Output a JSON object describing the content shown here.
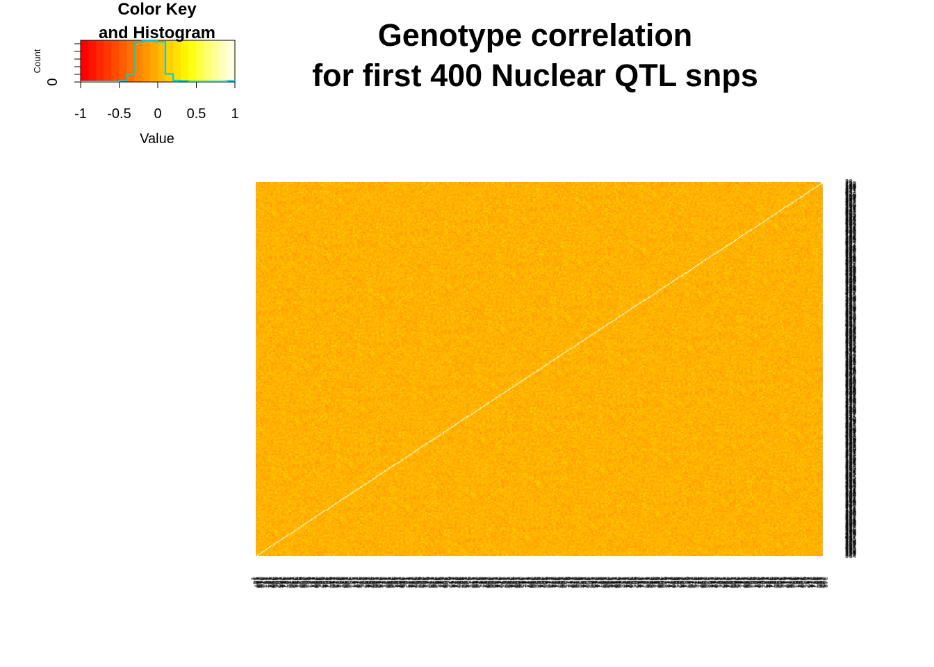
{
  "chart_data": {
    "type": "heatmap",
    "title": "Genotype correlation\nfor first 400 Nuclear QTL snps",
    "title_lines": [
      "Genotype correlation",
      "for first 400 Nuclear QTL snps"
    ],
    "n_snps": 400,
    "diagonal_value": 1,
    "off_diagonal_typical_range": [
      -0.3,
      0.3
    ],
    "color_scale": [
      "#FF0000",
      "#FF3300",
      "#FF6600",
      "#FF9900",
      "#FFCC00",
      "#FFFF00",
      "#FFFF80",
      "#FFFFE0"
    ],
    "color_key": {
      "title": "Color Key\nand Histogram",
      "title_lines": [
        "Color Key",
        "and Histogram"
      ],
      "xlabel": "Value",
      "ylabel": "Count",
      "xlim": [
        -1,
        1
      ],
      "x_ticks": [
        "-1",
        "-0.5",
        "0",
        "0.5",
        "1"
      ],
      "y_tick_label": "0",
      "histogram_color": "#00CED1",
      "histogram_bins": [
        -1,
        -0.9,
        -0.8,
        -0.7,
        -0.6,
        -0.5,
        -0.4,
        -0.3,
        -0.2,
        -0.1,
        0,
        0.1,
        0.2,
        0.3,
        0.4,
        0.5,
        0.6,
        0.7,
        0.8,
        0.9,
        1
      ],
      "histogram_counts_relative": [
        0,
        0,
        0,
        0,
        0,
        0.01,
        0.18,
        0.98,
        1.0,
        1.0,
        0.98,
        0.18,
        0.02,
        0.01,
        0,
        0,
        0,
        0,
        0,
        0.01
      ]
    },
    "axis_labels_note": "400 SNP index labels per axis (illegible overprint)",
    "legend_position": "top-left",
    "grid": false
  }
}
